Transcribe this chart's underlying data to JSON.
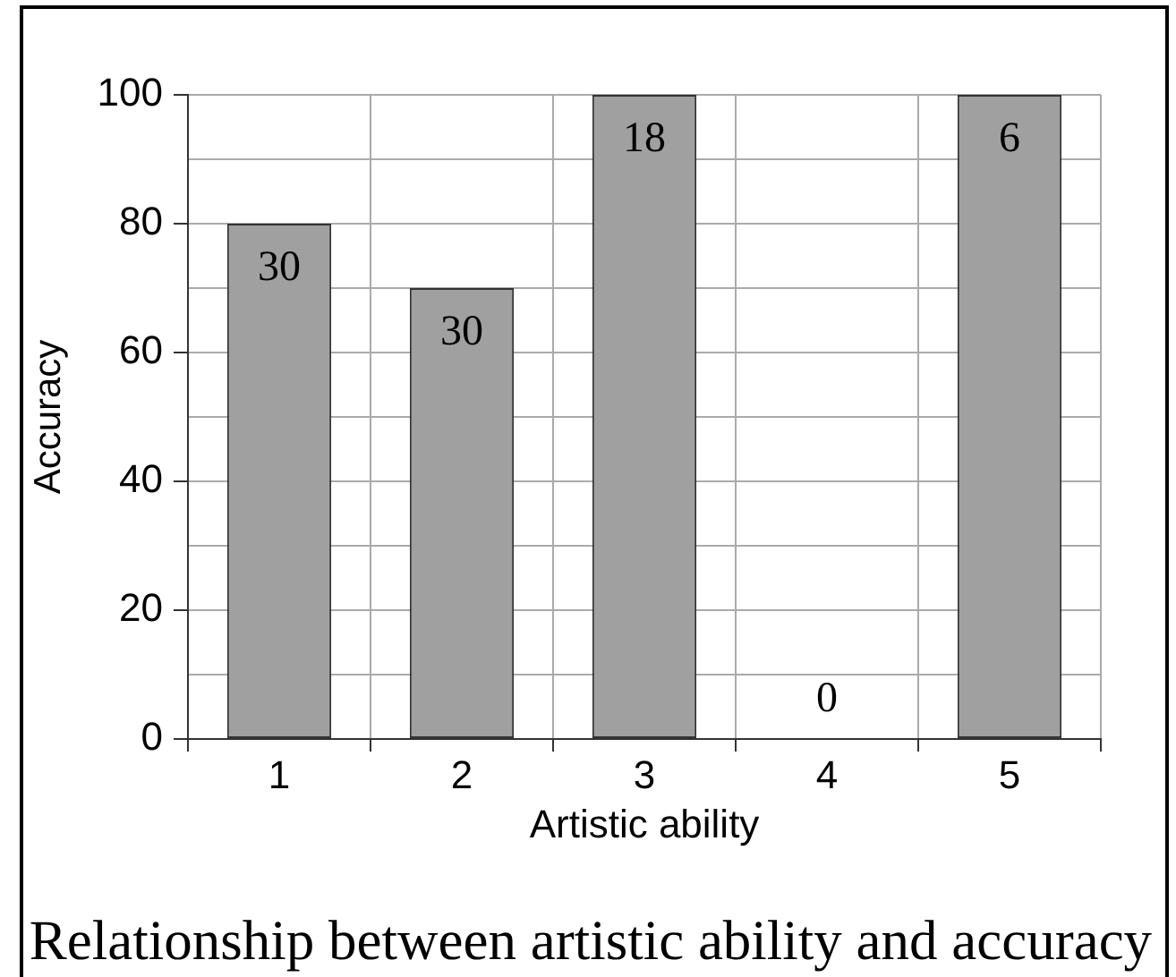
{
  "chart_data": {
    "type": "bar",
    "xlabel": "Artistic ability",
    "ylabel": "Accuracy",
    "annotations": [
      "Relationship between artistic ability and accuracy",
      {
        "text": "30",
        "x": "1",
        "y": 80
      },
      {
        "text": "30",
        "x": "2",
        "y": 70
      },
      {
        "text": "18",
        "x": "3",
        "y": 100
      },
      {
        "text": "0",
        "x": "4",
        "y": 0
      },
      {
        "text": "6",
        "x": "5",
        "y": 100
      }
    ],
    "categories": [
      "1",
      "2",
      "3",
      "4",
      "5"
    ],
    "values": [
      80,
      70,
      100,
      0,
      100
    ],
    "color": "#a0a0a0",
    "ylim": [
      0,
      100
    ],
    "yticks": [
      0,
      {
        "value": 10,
        "label": null
      },
      20,
      {
        "value": 30,
        "label": null
      },
      40,
      {
        "value": 50,
        "label": null
      },
      60,
      {
        "value": 70,
        "label": null
      },
      80,
      {
        "value": 90,
        "label": null
      },
      100
    ],
    "grid": true
  }
}
